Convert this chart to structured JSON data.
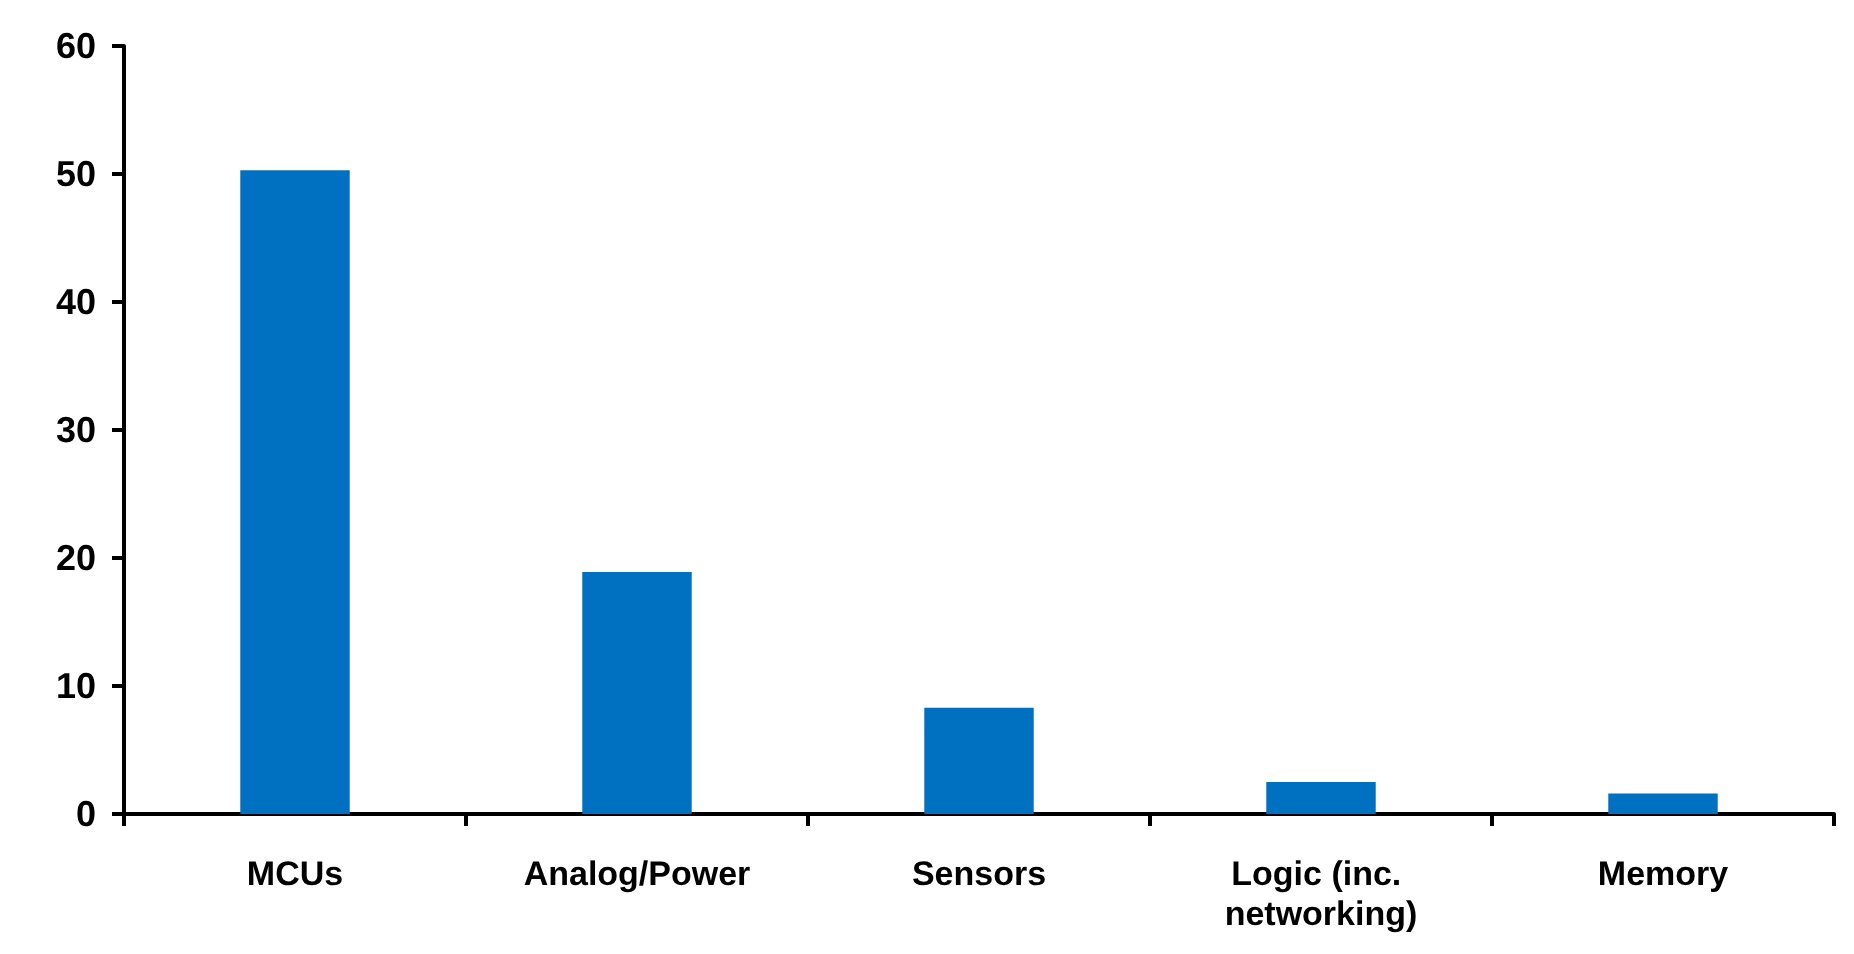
{
  "chart_data": {
    "type": "bar",
    "categories": [
      "MCUs",
      "Analog/Power",
      "Sensors",
      "Logic (inc. networking)",
      "Memory"
    ],
    "values": [
      50.3,
      18.9,
      8.3,
      2.5,
      1.6
    ],
    "color": "#0070c0",
    "ylim": [
      0,
      60
    ],
    "yticks": [
      0,
      10,
      20,
      30,
      40,
      50,
      60
    ],
    "grid": false
  }
}
